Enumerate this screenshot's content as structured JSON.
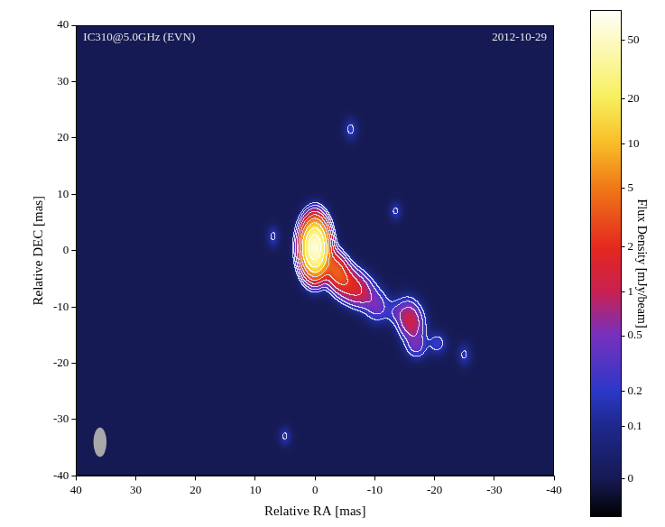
{
  "chart_data": {
    "type": "image",
    "title": "IC310@5.0GHz (EVN)",
    "subtitle": "2012-10-29",
    "x_label": "Relative RA [mas]",
    "y_label": "Relative DEC [mas]",
    "xlim": [
      40,
      -40
    ],
    "xticks": [
      40,
      30,
      20,
      10,
      0,
      -10,
      -20,
      -30,
      -40
    ],
    "ylim": [
      -40,
      40
    ],
    "yticks": [
      -40,
      -30,
      -20,
      -10,
      0,
      10,
      20,
      30,
      40
    ],
    "grid": false,
    "components": [
      {
        "x": 0,
        "y": 0.5,
        "flux": 60,
        "major": 5.4,
        "minor": 2.5,
        "pa": 0
      },
      {
        "x": -3.5,
        "y": -3.5,
        "flux": 3.5,
        "major": 5.0,
        "minor": 2.8,
        "pa": 25
      },
      {
        "x": -6.5,
        "y": -6.5,
        "flux": 1.5,
        "major": 5.5,
        "minor": 3.6,
        "pa": 45
      },
      {
        "x": -10.5,
        "y": -10,
        "flux": 0.35,
        "major": 4.0,
        "minor": 3.0,
        "pa": 0
      },
      {
        "x": -13.5,
        "y": -11,
        "flux": 0.2,
        "major": 3.0,
        "minor": 2.5,
        "pa": 0
      },
      {
        "x": -16,
        "y": -12.5,
        "flux": 1.1,
        "major": 5.0,
        "minor": 3.0,
        "pa": 10
      },
      {
        "x": -17,
        "y": -17,
        "flux": 0.35,
        "major": 3.2,
        "minor": 2.6,
        "pa": 0
      },
      {
        "x": -20.5,
        "y": -16.5,
        "flux": 0.22,
        "major": 3.0,
        "minor": 2.4,
        "pa": 0
      },
      {
        "x": -25,
        "y": -18.5,
        "flux": 0.17,
        "major": 3.0,
        "minor": 1.8,
        "pa": 0
      },
      {
        "x": -6,
        "y": 21.5,
        "flux": 0.18,
        "major": 3.0,
        "minor": 1.8,
        "pa": 0
      },
      {
        "x": -13.5,
        "y": 7,
        "flux": 0.17,
        "major": 2.5,
        "minor": 1.6,
        "pa": 0
      },
      {
        "x": 7,
        "y": 2.5,
        "flux": 0.17,
        "major": 3.0,
        "minor": 1.6,
        "pa": 0
      },
      {
        "x": 5,
        "y": -33,
        "flux": 0.17,
        "major": 2.5,
        "minor": 1.6,
        "pa": 0
      }
    ],
    "contour_levels": [
      0.15,
      0.3,
      0.6,
      1.2,
      2.4,
      4.8,
      9.6,
      19.2,
      38.4
    ],
    "beam": {
      "x": 36,
      "y": -34,
      "major": 5.2,
      "minor": 2.2,
      "pa": 0
    },
    "colorbar": {
      "label": "Flux Density [mJy/beam]",
      "range": [
        -0.07,
        80
      ],
      "ticks": [
        0,
        0.1,
        0.2,
        0.5,
        1,
        2,
        5,
        10,
        20,
        50
      ]
    }
  }
}
